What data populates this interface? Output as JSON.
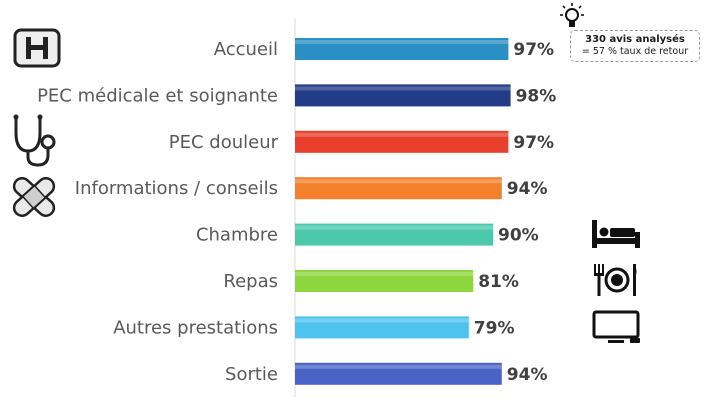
{
  "chart_data": {
    "type": "bar",
    "orientation": "horizontal",
    "categories": [
      "Accueil",
      "PEC médicale et soignante",
      "PEC douleur",
      "Informations / conseils",
      "Chambre",
      "Repas",
      "Autres prestations",
      "Sortie"
    ],
    "values": [
      97,
      98,
      97,
      94,
      90,
      81,
      79,
      94
    ],
    "value_labels": [
      "97%",
      "98%",
      "97%",
      "94%",
      "90%",
      "81%",
      "79%",
      "94%"
    ],
    "value_suffix": "%",
    "colors": [
      "#2a8fc4",
      "#233c87",
      "#e8402c",
      "#f5802b",
      "#4cc9aa",
      "#8dd63e",
      "#4fc3ef",
      "#4a63c6"
    ],
    "xlim": [
      0,
      100
    ],
    "axis_line": true,
    "grid": false
  },
  "note": {
    "line1": "330 avis analysés",
    "line2": "= 57 % taux de retour"
  },
  "icons": [
    "hospital-icon",
    "stethoscope-icon",
    "bandage-icon",
    "bed-icon",
    "plate-cutlery-icon",
    "tv-icon",
    "lightbulb-icon"
  ]
}
